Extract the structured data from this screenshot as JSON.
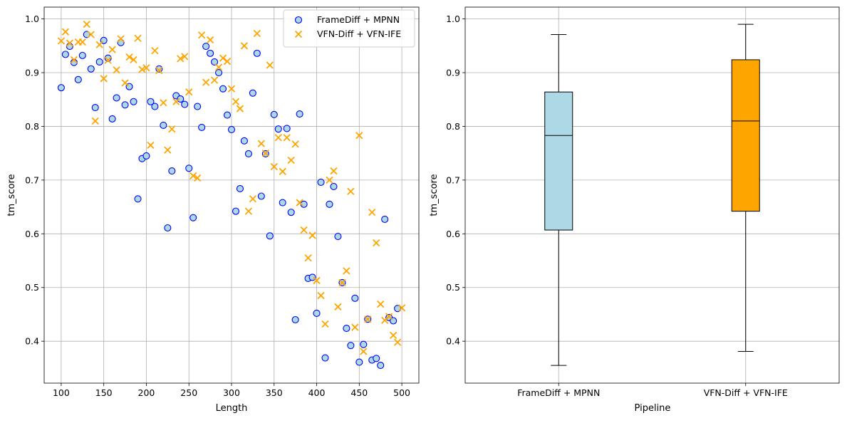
{
  "chart_data": [
    {
      "type": "scatter",
      "xlabel": "Length",
      "ylabel": "tm_score",
      "xlim": [
        80,
        520
      ],
      "ylim": [
        0.322,
        1.022
      ],
      "xticks": [
        "100",
        "150",
        "200",
        "250",
        "300",
        "350",
        "400",
        "450",
        "500"
      ],
      "yticks": [
        "0.4",
        "0.5",
        "0.6",
        "0.7",
        "0.8",
        "0.9"
      ],
      "yticks_full": [
        "0.4",
        "0.5",
        "0.6",
        "0.7",
        "0.8",
        "0.9",
        "1.0"
      ],
      "grid": true,
      "legend_position": "top-right",
      "series": [
        {
          "name": "FrameDiff + MPNN",
          "marker": "circle",
          "face_color": "#add8e6",
          "edge_color": "#0000ff",
          "x": [
            100,
            105,
            110,
            115,
            120,
            125,
            130,
            135,
            140,
            145,
            150,
            155,
            160,
            165,
            170,
            175,
            180,
            185,
            190,
            195,
            200,
            205,
            210,
            215,
            220,
            225,
            230,
            235,
            240,
            245,
            250,
            255,
            260,
            265,
            270,
            275,
            280,
            285,
            290,
            295,
            300,
            305,
            310,
            315,
            320,
            325,
            330,
            335,
            340,
            345,
            350,
            355,
            360,
            365,
            370,
            375,
            380,
            385,
            390,
            395,
            400,
            405,
            410,
            415,
            420,
            425,
            430,
            435,
            440,
            445,
            450,
            455,
            460,
            465,
            470,
            475,
            480,
            485,
            490,
            495
          ],
          "y": [
            0.872,
            0.934,
            0.949,
            0.919,
            0.887,
            0.932,
            0.971,
            0.907,
            0.835,
            0.92,
            0.96,
            0.927,
            0.814,
            0.853,
            0.956,
            0.84,
            0.874,
            0.846,
            0.665,
            0.74,
            0.745,
            0.846,
            0.837,
            0.907,
            0.802,
            0.611,
            0.717,
            0.857,
            0.851,
            0.841,
            0.722,
            0.63,
            0.837,
            0.798,
            0.949,
            0.936,
            0.92,
            0.9,
            0.87,
            0.821,
            0.794,
            0.642,
            0.684,
            0.773,
            0.749,
            0.862,
            0.936,
            0.67,
            0.749,
            0.596,
            0.822,
            0.795,
            0.658,
            0.796,
            0.64,
            0.44,
            0.823,
            0.655,
            0.517,
            0.519,
            0.452,
            0.696,
            0.369,
            0.655,
            0.688,
            0.595,
            0.509,
            0.424,
            0.392,
            0.48,
            0.361,
            0.394,
            0.441,
            0.365,
            0.368,
            0.355,
            0.627,
            0.444,
            0.438,
            0.461
          ]
        },
        {
          "name": "VFN-Diff + VFN-IFE",
          "marker": "x",
          "color": "#ffa500",
          "x": [
            100,
            105,
            110,
            115,
            120,
            125,
            130,
            135,
            140,
            145,
            150,
            155,
            160,
            165,
            170,
            175,
            180,
            185,
            190,
            195,
            200,
            205,
            210,
            215,
            220,
            225,
            230,
            235,
            240,
            245,
            250,
            255,
            260,
            265,
            270,
            275,
            280,
            285,
            290,
            295,
            300,
            305,
            310,
            315,
            320,
            325,
            330,
            335,
            340,
            345,
            350,
            355,
            360,
            365,
            370,
            375,
            380,
            385,
            390,
            395,
            400,
            405,
            410,
            415,
            420,
            425,
            430,
            435,
            440,
            445,
            450,
            455,
            460,
            465,
            470,
            475,
            480,
            485,
            490,
            495,
            500
          ],
          "y": [
            0.959,
            0.976,
            0.955,
            0.924,
            0.957,
            0.957,
            0.99,
            0.971,
            0.81,
            0.952,
            0.889,
            0.923,
            0.943,
            0.905,
            0.963,
            0.881,
            0.929,
            0.924,
            0.964,
            0.906,
            0.909,
            0.765,
            0.941,
            0.904,
            0.844,
            0.756,
            0.795,
            0.846,
            0.926,
            0.93,
            0.864,
            0.708,
            0.704,
            0.97,
            0.882,
            0.961,
            0.886,
            0.91,
            0.927,
            0.921,
            0.87,
            0.846,
            0.833,
            0.95,
            0.642,
            0.665,
            0.973,
            0.768,
            0.75,
            0.914,
            0.725,
            0.779,
            0.716,
            0.779,
            0.737,
            0.767,
            0.658,
            0.607,
            0.555,
            0.597,
            0.513,
            0.485,
            0.432,
            0.7,
            0.717,
            0.464,
            0.509,
            0.531,
            0.679,
            0.426,
            0.783,
            0.381,
            0.441,
            0.64,
            0.583,
            0.469,
            0.439,
            0.446,
            0.411,
            0.398,
            0.462
          ]
        }
      ]
    },
    {
      "type": "box",
      "xlabel": "Pipeline",
      "ylabel": "tm_score",
      "ylim": [
        0.322,
        1.022
      ],
      "yticks": [
        "0.4",
        "0.5",
        "0.6",
        "0.7",
        "0.8",
        "0.9",
        "1.0"
      ],
      "grid": true,
      "categories": [
        "FrameDiff + MPNN",
        "VFN-Diff + VFN-IFE"
      ],
      "boxes": [
        {
          "name": "FrameDiff + MPNN",
          "color": "#add8e6",
          "min": 0.355,
          "q1": 0.607,
          "median": 0.783,
          "q3": 0.864,
          "max": 0.971
        },
        {
          "name": "VFN-Diff + VFN-IFE",
          "color": "#ffa500",
          "min": 0.381,
          "q1": 0.642,
          "median": 0.81,
          "q3": 0.924,
          "max": 0.99
        }
      ]
    }
  ]
}
